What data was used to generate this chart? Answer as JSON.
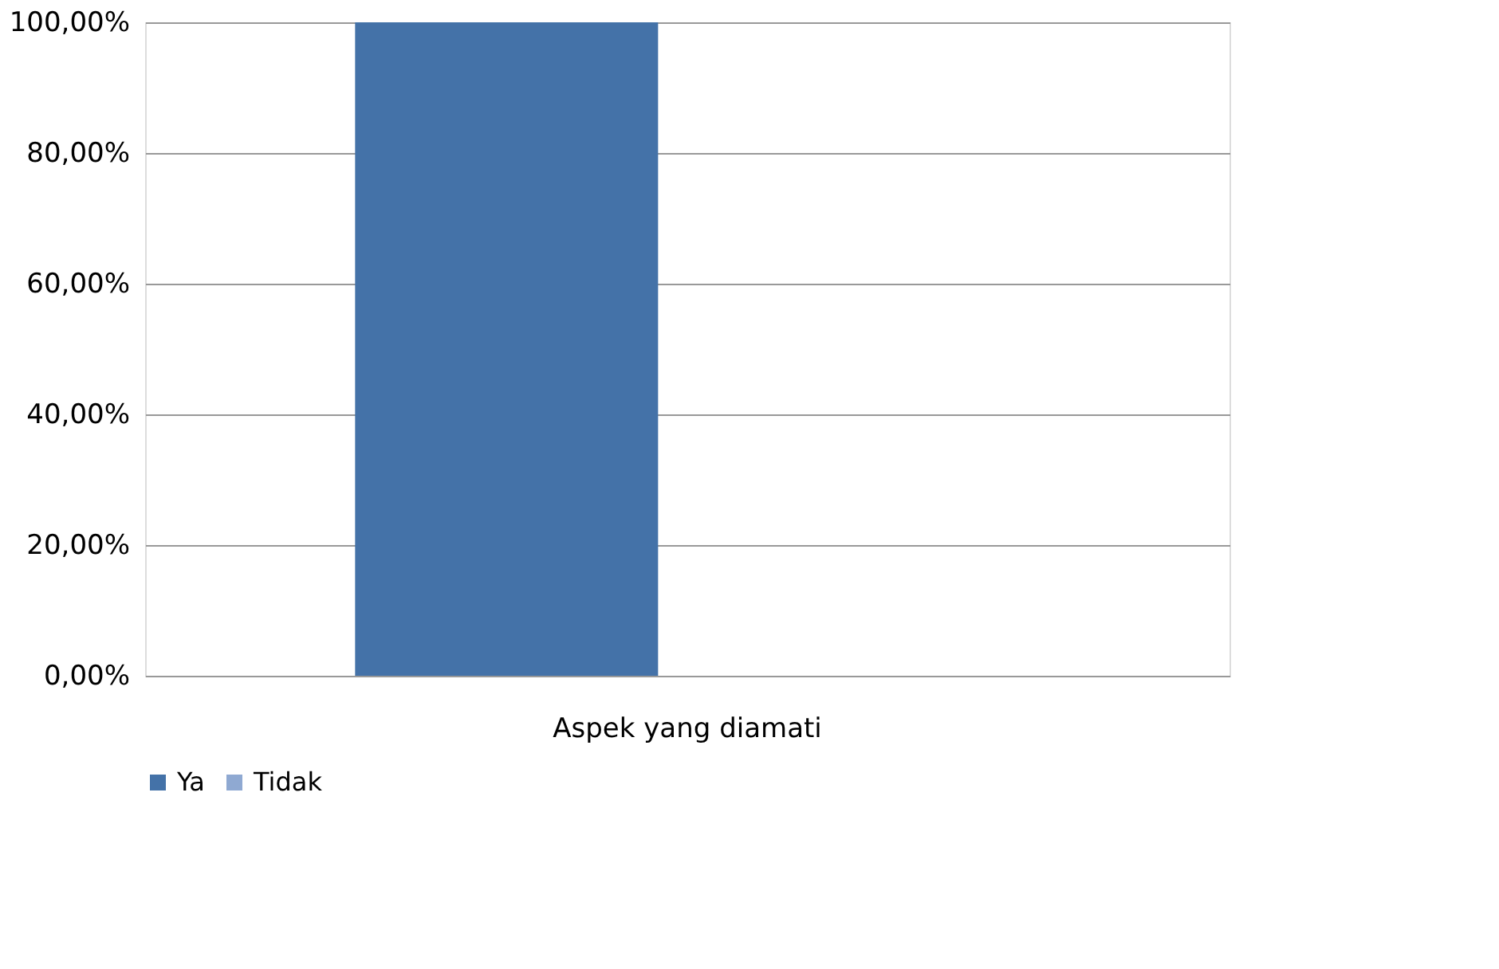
{
  "chart_data": {
    "type": "bar",
    "categories": [
      "Aspek yang diamati"
    ],
    "series": [
      {
        "name": "Ya",
        "color": "#4472a8",
        "values": [
          100
        ]
      },
      {
        "name": "Tidak",
        "color": "#8fa9d2",
        "values": [
          0
        ]
      }
    ],
    "ylim": [
      0,
      100
    ],
    "yticks": [
      {
        "value": 0,
        "label": "0,00%"
      },
      {
        "value": 20,
        "label": "20,00%"
      },
      {
        "value": 40,
        "label": "40,00%"
      },
      {
        "value": 60,
        "label": "60,00%"
      },
      {
        "value": 80,
        "label": "80,00%"
      },
      {
        "value": 100,
        "label": "100,00%"
      }
    ],
    "grid": "y",
    "legend": "bottom"
  }
}
